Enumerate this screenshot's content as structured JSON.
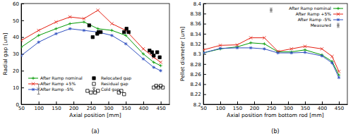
{
  "chart_data": [
    {
      "type": "line",
      "xlabel": "Axial position [mm]",
      "ylabel": "Radial gap [um]",
      "annotations": [
        "(a)"
      ],
      "xlim": [
        50,
        475
      ],
      "xticks": [
        50,
        100,
        150,
        200,
        250,
        300,
        350,
        400,
        450
      ],
      "ylim": [
        0,
        60
      ],
      "yticks": [
        0,
        10,
        20,
        30,
        40,
        50,
        60
      ],
      "grid": false,
      "legend": "bottom",
      "series": [
        {
          "name": "After Ramp nominal",
          "type": "line",
          "color": "#009900",
          "marker": "plus",
          "line_style": "solid",
          "x": [
            50,
            100,
            150,
            190,
            230,
            270,
            310,
            350,
            400,
            430,
            450
          ],
          "values": [
            34,
            41,
            45,
            48,
            49,
            45,
            44,
            41,
            30,
            25,
            23
          ]
        },
        {
          "name": "After Ramp +5%",
          "type": "line",
          "color": "#e51e10",
          "marker": "cross",
          "line_style": "solid",
          "x": [
            50,
            100,
            150,
            190,
            230,
            270,
            310,
            350,
            400,
            430,
            450
          ],
          "values": [
            38,
            44,
            49,
            52,
            51,
            56,
            48,
            44,
            33,
            28,
            25
          ]
        },
        {
          "name": "After Ramp -5%",
          "type": "line",
          "color": "#3050c0",
          "marker": "star",
          "line_style": "solid",
          "x": [
            50,
            100,
            150,
            190,
            230,
            270,
            310,
            350,
            400,
            430,
            450
          ],
          "values": [
            29,
            37,
            42,
            45,
            44,
            43,
            41,
            36,
            27,
            22,
            20
          ]
        },
        {
          "name": "Relocated gap",
          "type": "scatter",
          "color": "#000000",
          "marker": "filled-square",
          "x": [
            245,
            255,
            268,
            272,
            278,
            345,
            352,
            358,
            418,
            425,
            430,
            440,
            447
          ],
          "values": [
            47,
            40,
            42,
            43,
            43,
            43,
            45,
            43,
            32,
            31,
            29,
            31,
            28
          ]
        },
        {
          "name": "Residual gap",
          "type": "scatter",
          "color": "#000000",
          "marker": "open-square",
          "x": [
            240,
            250,
            262,
            270,
            330,
            337,
            345,
            430,
            437,
            443,
            450,
            456
          ],
          "values": [
            8,
            7,
            7,
            8,
            7,
            8,
            6,
            10,
            11,
            10,
            11,
            10
          ]
        },
        {
          "name": "Cold gap",
          "type": "scatter",
          "color": "#555555",
          "marker": "cross",
          "x": [
            100
          ],
          "values": [
            9
          ],
          "errors": [
            3
          ]
        }
      ]
    },
    {
      "type": "line",
      "xlabel": "Axial position from bottom rod [mm]",
      "ylabel": "Pellet diameter [um]",
      "annotations": [
        "(b)"
      ],
      "xlim": [
        50,
        475
      ],
      "xticks": [
        50,
        100,
        150,
        200,
        250,
        300,
        350,
        400,
        450
      ],
      "ylim": [
        8.2,
        8.4
      ],
      "yticks": [
        8.2,
        8.22,
        8.24,
        8.26,
        8.28,
        8.3,
        8.32,
        8.34,
        8.36,
        8.38,
        8.4
      ],
      "grid": false,
      "legend": "top-right",
      "series": [
        {
          "name": "After Ramp nominal",
          "type": "line",
          "color": "#009900",
          "marker": "plus",
          "line_style": "solid",
          "x": [
            50,
            100,
            150,
            190,
            230,
            270,
            310,
            350,
            400,
            430,
            450
          ],
          "values": [
            8.302,
            8.31,
            8.314,
            8.322,
            8.32,
            8.304,
            8.304,
            8.308,
            8.298,
            8.285,
            8.258
          ]
        },
        {
          "name": "After Ramp +5%",
          "type": "line",
          "color": "#e51e10",
          "marker": "cross",
          "line_style": "solid",
          "x": [
            50,
            100,
            150,
            190,
            230,
            270,
            310,
            350,
            400,
            430,
            450
          ],
          "values": [
            8.308,
            8.317,
            8.318,
            8.332,
            8.332,
            8.305,
            8.31,
            8.315,
            8.31,
            8.295,
            8.265
          ]
        },
        {
          "name": "After Ramp -5%",
          "type": "line",
          "color": "#3050c0",
          "marker": "star",
          "line_style": "solid",
          "x": [
            50,
            100,
            150,
            190,
            230,
            270,
            310,
            350,
            400,
            430,
            450
          ],
          "values": [
            8.302,
            8.311,
            8.312,
            8.312,
            8.31,
            8.302,
            8.302,
            8.303,
            8.296,
            8.282,
            8.253
          ]
        },
        {
          "name": "Measured",
          "type": "scatter",
          "color": "#888888",
          "marker": "point",
          "x": [
            250
          ],
          "values": [
            8.387
          ],
          "errors": [
            0.004
          ]
        }
      ]
    }
  ]
}
